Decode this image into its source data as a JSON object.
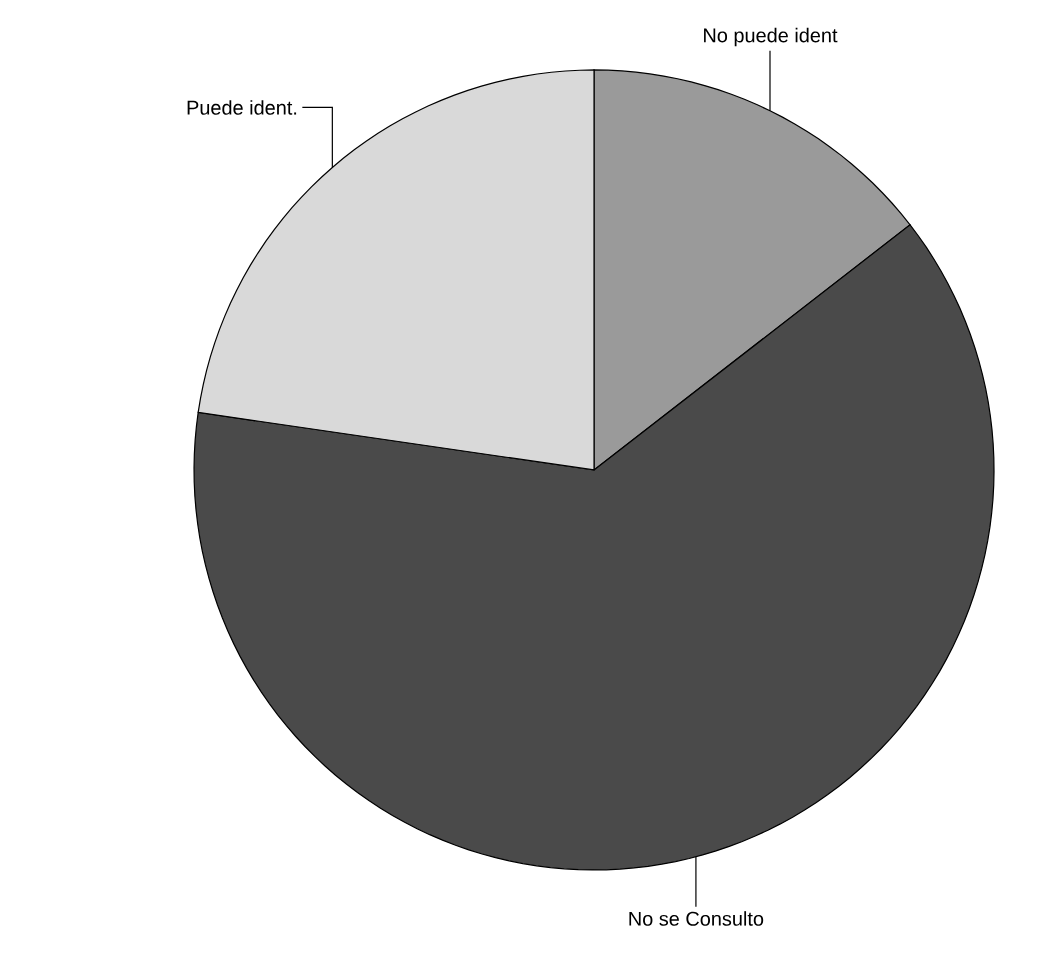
{
  "chart_data": {
    "type": "pie",
    "categories": [
      "No puede ident",
      "No se Consulto",
      "Puede ident."
    ],
    "values": [
      14.5,
      62.8,
      22.7
    ],
    "colors": [
      "#9a9a9a",
      "#4a4a4a",
      "#d9d9d9"
    ]
  }
}
